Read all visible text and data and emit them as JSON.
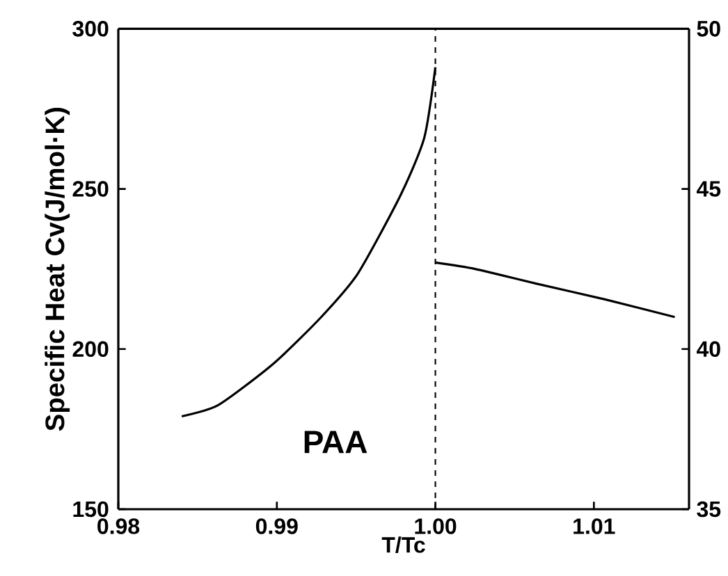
{
  "chart_data": {
    "type": "line",
    "xlabel": "T/Tc",
    "ylabel": "Specific Heat  Cv(J/mol·K)",
    "xlim": [
      0.98,
      1.016
    ],
    "xticks": [
      {
        "value": 0.98,
        "label": "0.98"
      },
      {
        "value": 0.99,
        "label": "0.99"
      },
      {
        "value": 1.0,
        "label": "1.00"
      },
      {
        "value": 1.01,
        "label": "1.01"
      }
    ],
    "ylim": [
      150,
      300
    ],
    "yticks": [
      150,
      200,
      250,
      300
    ],
    "y2lim": [
      35,
      50
    ],
    "y2ticks": [
      35,
      40,
      45,
      50
    ],
    "series": [
      {
        "color": "#000000",
        "x": [
          0.984,
          0.9863,
          0.9898,
          0.9928,
          0.9951,
          0.9978,
          0.9993,
          1.0
        ],
        "values": [
          179,
          182.5,
          195.5,
          210,
          223.5,
          248,
          266,
          288
        ]
      },
      {
        "color": "#000000",
        "x": [
          1.0,
          1.0025,
          1.0063,
          1.0107,
          1.0151
        ],
        "values": [
          227,
          225,
          220.5,
          215.5,
          210
        ]
      }
    ],
    "ref_lines": [
      {
        "axis": "x",
        "value": 1.0,
        "line_style": "dashed",
        "color": "#000000"
      }
    ],
    "annotations": [
      "PAA"
    ],
    "grid": false,
    "marker": "none",
    "line_style": "solid"
  }
}
